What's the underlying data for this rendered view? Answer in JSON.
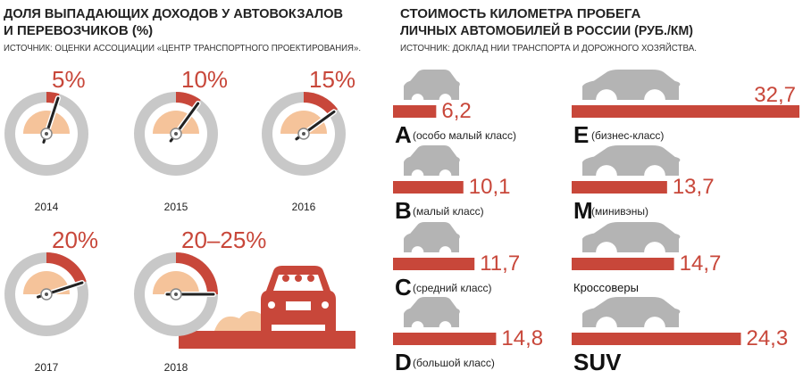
{
  "chart_data": [
    {
      "type": "gauge",
      "title": [
        "ДОЛЯ ВЫПАДАЮЩИХ ДОХОДОВ У АВТОВОКЗАЛОВ",
        "И ПЕРЕВОЗЧИКОВ (%)"
      ],
      "subtitle": "ИСТОЧНИК: ОЦЕНКИ АССОЦИАЦИИ «ЦЕНТР ТРАНСПОРТНОГО ПРОЕКТИРОВАНИЯ».",
      "categories": [
        "2014",
        "2015",
        "2016",
        "2017",
        "2018"
      ],
      "values": [
        5,
        10,
        15,
        20,
        25
      ],
      "value_labels": [
        "5%",
        "10%",
        "15%",
        "20%",
        "20–25%"
      ],
      "color": "#c8473a"
    },
    {
      "type": "bar",
      "title": [
        "СТОИМОСТЬ КИЛОМЕТРА ПРОБЕГА",
        "ЛИЧНЫХ АВТОМОБИЛЕЙ В РОССИИ (РУБ./КМ)"
      ],
      "subtitle": "ИСТОЧНИК: ДОКЛАД НИИ ТРАНСПОРТА И ДОРОЖНОГО ХОЗЯЙСТВА.",
      "categories": [
        "A",
        "B",
        "C",
        "D",
        "E",
        "M",
        "Кроссоверы",
        "SUV"
      ],
      "descriptions": [
        "(особо малый класс)",
        "(малый класс)",
        "(средний класс)",
        "(большой класс)",
        "(бизнес-класс)",
        "(минивэны)",
        null,
        null
      ],
      "values": [
        6.2,
        10.1,
        11.7,
        14.8,
        32.7,
        13.7,
        14.7,
        24.3
      ],
      "value_labels": [
        "6,2",
        "10,1",
        "11,7",
        "14,8",
        "32,7",
        "13,7",
        "14,7",
        "24,3"
      ],
      "color": "#c8473a"
    }
  ]
}
